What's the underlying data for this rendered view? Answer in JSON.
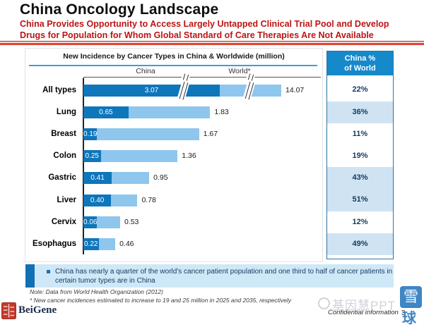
{
  "slide": {
    "title": "China Oncology Landscape",
    "subtitle_line1": "China Provides Opportunity to Access Largely Untapped Clinical Trial Pool and Develop",
    "subtitle_line2": "Drugs for Population for Whom Global Standard of Care Therapies Are Not Available"
  },
  "chart_data": {
    "type": "bar",
    "title": "New Incidence by Cancer Types in China & Worldwide (million)",
    "orientation": "horizontal",
    "series_labels": {
      "china": "China",
      "world": "World*"
    },
    "categories": [
      "All types",
      "Lung",
      "Breast",
      "Colon",
      "Gastric",
      "Liver",
      "Cervix",
      "Esophagus"
    ],
    "series": [
      {
        "name": "China",
        "values": [
          3.07,
          0.65,
          0.19,
          0.25,
          0.41,
          0.4,
          0.06,
          0.22
        ]
      },
      {
        "name": "World",
        "values": [
          14.07,
          1.83,
          1.67,
          1.36,
          0.95,
          0.78,
          0.53,
          0.46
        ]
      }
    ],
    "china_pct_of_world": [
      "22%",
      "36%",
      "11%",
      "19%",
      "43%",
      "51%",
      "12%",
      "49%"
    ],
    "highlighted_pct_rows": [
      1,
      4,
      5,
      7
    ],
    "axis_break_row": "All types",
    "legend_position": "top",
    "colors": {
      "china_bar": "#0e76bb",
      "world_bar": "#8ec6ee",
      "panel_header": "#1689cb",
      "row_highlight": "#cfe3f3"
    }
  },
  "panel": {
    "header_line1": "China %",
    "header_line2": "of World"
  },
  "callout": {
    "text": "China has nearly a quarter of the world's cancer patient population and one third to half of cancer patients in certain tumor types are in China"
  },
  "notes": {
    "line1": "Note: Data from World Health Organization (2012)",
    "line2": "* New cancer incidences estimated to increase to 19 and 25 million in 2025 and 2035, respectively"
  },
  "footer": {
    "logo_text": "BeiGene",
    "confidential": "Confidential information",
    "page_number": "3"
  },
  "watermarks": {
    "gray_text": "基因慧PPT",
    "xueqiu_top": "雪",
    "xueqiu_bottom": "球"
  }
}
